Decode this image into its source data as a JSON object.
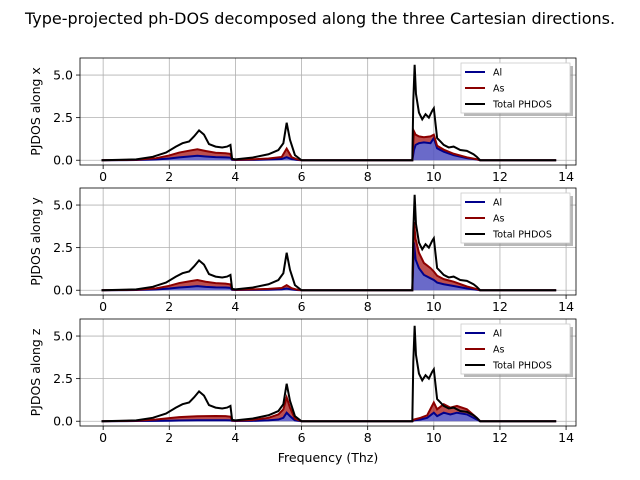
{
  "figure": {
    "title": "Type-projected ph-DOS decomposed along the three Cartesian directions."
  },
  "colors": {
    "Al": "#00008b",
    "As": "#8b0000",
    "Total": "#000000",
    "Al_fill": "#5050c0",
    "As_fill": "#b03030",
    "grid": "#b0b0b0"
  },
  "chart_data": [
    {
      "type": "area",
      "ylabel": "PJDOS along x",
      "xlabel": "",
      "xlim": [
        -0.7,
        14.3
      ],
      "ylim": [
        -0.28,
        6.0
      ],
      "xticks": [
        0,
        2,
        4,
        6,
        8,
        10,
        12,
        14
      ],
      "yticks": [
        0.0,
        2.5,
        5.0
      ],
      "grid": true,
      "legend_position": "top-right",
      "legend": [
        "Al",
        "As",
        "Total PHDOS"
      ],
      "series": [
        {
          "name": "Al",
          "x": [
            -0.05,
            1.0,
            1.6,
            2.0,
            2.3,
            2.6,
            2.85,
            3.1,
            3.4,
            3.7,
            3.85,
            3.9,
            4.0,
            4.5,
            5.0,
            5.4,
            5.55,
            5.7,
            5.85,
            6.0,
            9.35,
            9.4,
            9.45,
            9.55,
            9.7,
            9.9,
            10.0,
            10.1,
            10.3,
            10.6,
            11.0,
            11.3,
            11.4,
            13.7
          ],
          "y": [
            0,
            0.01,
            0.04,
            0.1,
            0.17,
            0.22,
            0.26,
            0.22,
            0.18,
            0.17,
            0.15,
            0.02,
            0.01,
            0.02,
            0.04,
            0.07,
            0.18,
            0.06,
            0.02,
            0,
            0,
            0.6,
            0.9,
            1.0,
            1.05,
            1.0,
            1.3,
            0.7,
            0.5,
            0.3,
            0.12,
            0.04,
            0,
            0
          ]
        },
        {
          "name": "As",
          "x": [
            -0.05,
            1.0,
            1.6,
            2.0,
            2.3,
            2.6,
            2.85,
            3.1,
            3.4,
            3.7,
            3.85,
            3.9,
            4.0,
            4.5,
            5.0,
            5.4,
            5.55,
            5.7,
            5.85,
            6.0,
            9.35,
            9.4,
            9.45,
            9.55,
            9.7,
            9.9,
            10.0,
            10.1,
            10.3,
            10.6,
            11.0,
            11.3,
            11.4,
            13.7
          ],
          "y": [
            0,
            0.02,
            0.08,
            0.18,
            0.28,
            0.34,
            0.38,
            0.32,
            0.26,
            0.24,
            0.22,
            0.04,
            0.02,
            0.03,
            0.06,
            0.12,
            0.5,
            0.12,
            0.04,
            0,
            0,
            1.1,
            0.6,
            0.4,
            0.3,
            0.4,
            0.2,
            0.15,
            0.12,
            0.08,
            0.05,
            0.02,
            0,
            0
          ]
        },
        {
          "name": "Total PHDOS",
          "x": [
            -0.05,
            1.0,
            1.5,
            1.9,
            2.2,
            2.4,
            2.6,
            2.75,
            2.9,
            3.05,
            3.2,
            3.4,
            3.6,
            3.75,
            3.85,
            3.9,
            4.0,
            4.5,
            5.0,
            5.3,
            5.45,
            5.55,
            5.65,
            5.8,
            6.0,
            9.35,
            9.38,
            9.42,
            9.46,
            9.55,
            9.65,
            9.75,
            9.85,
            9.95,
            10.0,
            10.1,
            10.2,
            10.3,
            10.45,
            10.6,
            10.8,
            11.0,
            11.2,
            11.3,
            11.4,
            13.7
          ],
          "y": [
            0,
            0.05,
            0.2,
            0.45,
            0.8,
            1.0,
            1.1,
            1.4,
            1.75,
            1.5,
            0.95,
            0.8,
            0.75,
            0.8,
            0.9,
            0.08,
            0.05,
            0.15,
            0.35,
            0.6,
            1.0,
            2.2,
            1.2,
            0.3,
            0,
            0,
            3.5,
            5.6,
            3.9,
            2.8,
            2.4,
            2.7,
            2.5,
            2.9,
            3.05,
            1.3,
            1.1,
            0.9,
            0.75,
            0.8,
            0.6,
            0.55,
            0.35,
            0.2,
            0,
            0
          ]
        }
      ]
    },
    {
      "type": "area",
      "ylabel": "PJDOS along y",
      "xlabel": "",
      "xlim": [
        -0.7,
        14.3
      ],
      "ylim": [
        -0.28,
        6.0
      ],
      "xticks": [
        0,
        2,
        4,
        6,
        8,
        10,
        12,
        14
      ],
      "yticks": [
        0.0,
        2.5,
        5.0
      ],
      "grid": true,
      "legend_position": "top-right",
      "legend": [
        "Al",
        "As",
        "Total PHDOS"
      ],
      "series": [
        {
          "name": "Al",
          "x": [
            -0.05,
            1.0,
            1.6,
            2.0,
            2.3,
            2.6,
            2.85,
            3.1,
            3.4,
            3.7,
            3.85,
            3.9,
            4.0,
            4.5,
            5.0,
            5.4,
            5.55,
            5.7,
            5.85,
            6.0,
            9.35,
            9.4,
            9.45,
            9.55,
            9.7,
            9.9,
            10.0,
            10.1,
            10.3,
            10.6,
            11.0,
            11.3,
            11.4,
            13.7
          ],
          "y": [
            0,
            0.01,
            0.04,
            0.1,
            0.16,
            0.2,
            0.24,
            0.2,
            0.17,
            0.16,
            0.14,
            0.02,
            0.01,
            0.02,
            0.03,
            0.05,
            0.1,
            0.04,
            0.01,
            0,
            0,
            2.8,
            1.8,
            1.3,
            0.9,
            0.7,
            0.6,
            0.45,
            0.35,
            0.25,
            0.1,
            0.03,
            0,
            0
          ]
        },
        {
          "name": "As",
          "x": [
            -0.05,
            1.0,
            1.6,
            2.0,
            2.3,
            2.6,
            2.85,
            3.1,
            3.4,
            3.7,
            3.85,
            3.9,
            4.0,
            4.5,
            5.0,
            5.4,
            5.55,
            5.7,
            5.85,
            6.0,
            9.35,
            9.4,
            9.45,
            9.55,
            9.7,
            9.9,
            10.0,
            10.1,
            10.3,
            10.6,
            11.0,
            11.3,
            11.4,
            13.7
          ],
          "y": [
            0,
            0.02,
            0.07,
            0.16,
            0.26,
            0.32,
            0.36,
            0.3,
            0.25,
            0.23,
            0.2,
            0.03,
            0.02,
            0.03,
            0.05,
            0.08,
            0.2,
            0.08,
            0.03,
            0,
            0,
            1.2,
            1.2,
            0.9,
            0.7,
            0.6,
            0.5,
            0.4,
            0.3,
            0.25,
            0.12,
            0.04,
            0,
            0
          ]
        },
        {
          "name": "Total PHDOS",
          "x": [
            -0.05,
            1.0,
            1.5,
            1.9,
            2.2,
            2.4,
            2.6,
            2.75,
            2.9,
            3.05,
            3.2,
            3.4,
            3.6,
            3.75,
            3.85,
            3.9,
            4.0,
            4.5,
            5.0,
            5.3,
            5.45,
            5.55,
            5.65,
            5.8,
            6.0,
            9.35,
            9.38,
            9.42,
            9.46,
            9.55,
            9.65,
            9.75,
            9.85,
            9.95,
            10.0,
            10.1,
            10.2,
            10.3,
            10.45,
            10.6,
            10.8,
            11.0,
            11.2,
            11.3,
            11.4,
            13.7
          ],
          "y": [
            0,
            0.05,
            0.2,
            0.45,
            0.8,
            1.0,
            1.1,
            1.4,
            1.75,
            1.5,
            0.95,
            0.8,
            0.75,
            0.8,
            0.9,
            0.08,
            0.05,
            0.15,
            0.35,
            0.6,
            1.0,
            2.2,
            1.2,
            0.3,
            0,
            0,
            3.5,
            5.6,
            3.9,
            2.8,
            2.4,
            2.7,
            2.5,
            2.9,
            3.05,
            1.3,
            1.1,
            0.9,
            0.75,
            0.8,
            0.6,
            0.55,
            0.35,
            0.2,
            0,
            0
          ]
        }
      ]
    },
    {
      "type": "area",
      "ylabel": "PJDOS along z",
      "xlabel": "Frequency (Thz)",
      "xlim": [
        -0.7,
        14.3
      ],
      "ylim": [
        -0.28,
        6.0
      ],
      "xticks": [
        0,
        2,
        4,
        6,
        8,
        10,
        12,
        14
      ],
      "yticks": [
        0.0,
        2.5,
        5.0
      ],
      "grid": true,
      "legend_position": "top-right",
      "legend": [
        "Al",
        "As",
        "Total PHDOS"
      ],
      "series": [
        {
          "name": "Al",
          "x": [
            -0.05,
            1.0,
            1.6,
            2.0,
            2.3,
            2.6,
            2.85,
            3.1,
            3.4,
            3.7,
            3.85,
            3.9,
            4.0,
            4.5,
            5.0,
            5.3,
            5.45,
            5.55,
            5.65,
            5.8,
            6.0,
            9.35,
            9.4,
            9.6,
            9.8,
            10.0,
            10.1,
            10.3,
            10.5,
            10.7,
            11.0,
            11.3,
            11.4,
            13.7
          ],
          "y": [
            0,
            0.01,
            0.02,
            0.03,
            0.04,
            0.05,
            0.06,
            0.06,
            0.06,
            0.06,
            0.05,
            0.02,
            0.01,
            0.02,
            0.05,
            0.1,
            0.2,
            0.5,
            0.3,
            0.05,
            0,
            0,
            0.05,
            0.1,
            0.2,
            0.5,
            0.3,
            0.5,
            0.4,
            0.5,
            0.4,
            0.1,
            0,
            0
          ]
        },
        {
          "name": "As",
          "x": [
            -0.05,
            1.0,
            1.6,
            2.0,
            2.3,
            2.6,
            2.85,
            3.1,
            3.4,
            3.7,
            3.85,
            3.9,
            4.0,
            4.5,
            5.0,
            5.3,
            5.45,
            5.55,
            5.65,
            5.8,
            6.0,
            9.35,
            9.4,
            9.6,
            9.8,
            10.0,
            10.1,
            10.3,
            10.5,
            10.7,
            11.0,
            11.3,
            11.4,
            13.7
          ],
          "y": [
            0,
            0.02,
            0.08,
            0.15,
            0.2,
            0.22,
            0.23,
            0.24,
            0.25,
            0.24,
            0.22,
            0.03,
            0.02,
            0.05,
            0.15,
            0.3,
            0.5,
            0.9,
            0.5,
            0.1,
            0,
            0,
            0.05,
            0.1,
            0.15,
            0.6,
            0.4,
            0.5,
            0.4,
            0.4,
            0.3,
            0.1,
            0,
            0
          ]
        },
        {
          "name": "Total PHDOS",
          "x": [
            -0.05,
            1.0,
            1.5,
            1.9,
            2.2,
            2.4,
            2.6,
            2.75,
            2.9,
            3.05,
            3.2,
            3.4,
            3.6,
            3.75,
            3.85,
            3.9,
            4.0,
            4.5,
            5.0,
            5.3,
            5.45,
            5.55,
            5.65,
            5.8,
            6.0,
            9.35,
            9.38,
            9.42,
            9.46,
            9.55,
            9.65,
            9.75,
            9.85,
            9.95,
            10.0,
            10.1,
            10.2,
            10.3,
            10.45,
            10.6,
            10.8,
            11.0,
            11.2,
            11.3,
            11.4,
            13.7
          ],
          "y": [
            0,
            0.05,
            0.2,
            0.45,
            0.8,
            1.0,
            1.1,
            1.4,
            1.75,
            1.5,
            0.95,
            0.8,
            0.75,
            0.8,
            0.9,
            0.08,
            0.05,
            0.15,
            0.35,
            0.6,
            1.0,
            2.2,
            1.2,
            0.3,
            0,
            0,
            3.5,
            5.6,
            3.9,
            2.8,
            2.4,
            2.7,
            2.5,
            2.9,
            3.05,
            1.3,
            1.1,
            0.9,
            0.75,
            0.8,
            0.6,
            0.55,
            0.35,
            0.2,
            0,
            0
          ]
        }
      ]
    }
  ]
}
